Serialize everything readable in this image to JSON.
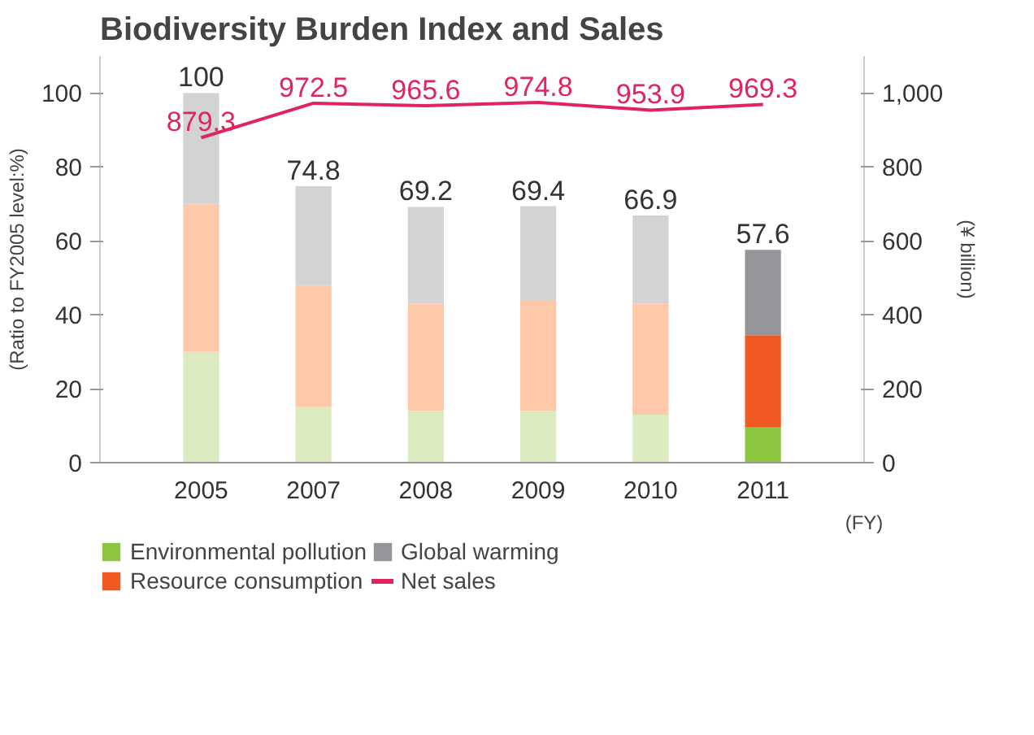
{
  "chart_data": {
    "type": "bar",
    "title": "Biodiversity Burden Index and Sales",
    "ylabel": "(Ratio to FY2005 level:%)",
    "y2label": "(¥ billion)",
    "xlabel": "(FY)",
    "categories": [
      "2005",
      "2007",
      "2008",
      "2009",
      "2010",
      "2011"
    ],
    "stacked": true,
    "series": [
      {
        "name": "Environmental pollution",
        "color": "#8cc63f",
        "colors": [
          "#dcebc0",
          "#dcebc0",
          "#dcebc0",
          "#dcebc0",
          "#dcebc0",
          "#8cc63f"
        ],
        "values": [
          30,
          15,
          14,
          14,
          13,
          9.5
        ]
      },
      {
        "name": "Resource consumption",
        "color": "#f05a22",
        "colors": [
          "#fdc9a8",
          "#fdc9a8",
          "#fdc9a8",
          "#fdc9a8",
          "#fdc9a8",
          "#f05a22"
        ],
        "values": [
          40,
          33,
          29,
          30,
          30,
          25
        ]
      },
      {
        "name": "Global warming",
        "color": "#939598",
        "colors": [
          "#d3d3d3",
          "#d3d3d3",
          "#d3d3d3",
          "#d3d3d3",
          "#d3d3d3",
          "#939598"
        ],
        "values": [
          30,
          26.8,
          26.2,
          25.4,
          23.9,
          23.1
        ]
      },
      {
        "name": "Net sales",
        "type": "line",
        "axis": "y2",
        "color": "#e0245e",
        "values": [
          879.3,
          972.5,
          965.6,
          974.8,
          953.9,
          969.3
        ],
        "value_labels": [
          "879.3",
          "972.5",
          "965.6",
          "974.8",
          "953.9",
          "969.3"
        ]
      }
    ],
    "totals": [
      "100",
      "74.8",
      "69.2",
      "69.4",
      "66.9",
      "57.6"
    ],
    "ylim": [
      0,
      110
    ],
    "yticks": [
      0,
      20,
      40,
      60,
      80,
      100
    ],
    "y2lim": [
      0,
      1100
    ],
    "y2ticks": [
      0,
      200,
      400,
      600,
      800,
      {
        "value": 1000,
        "label": "1,000"
      }
    ],
    "grid": false,
    "legend": "bottom"
  }
}
